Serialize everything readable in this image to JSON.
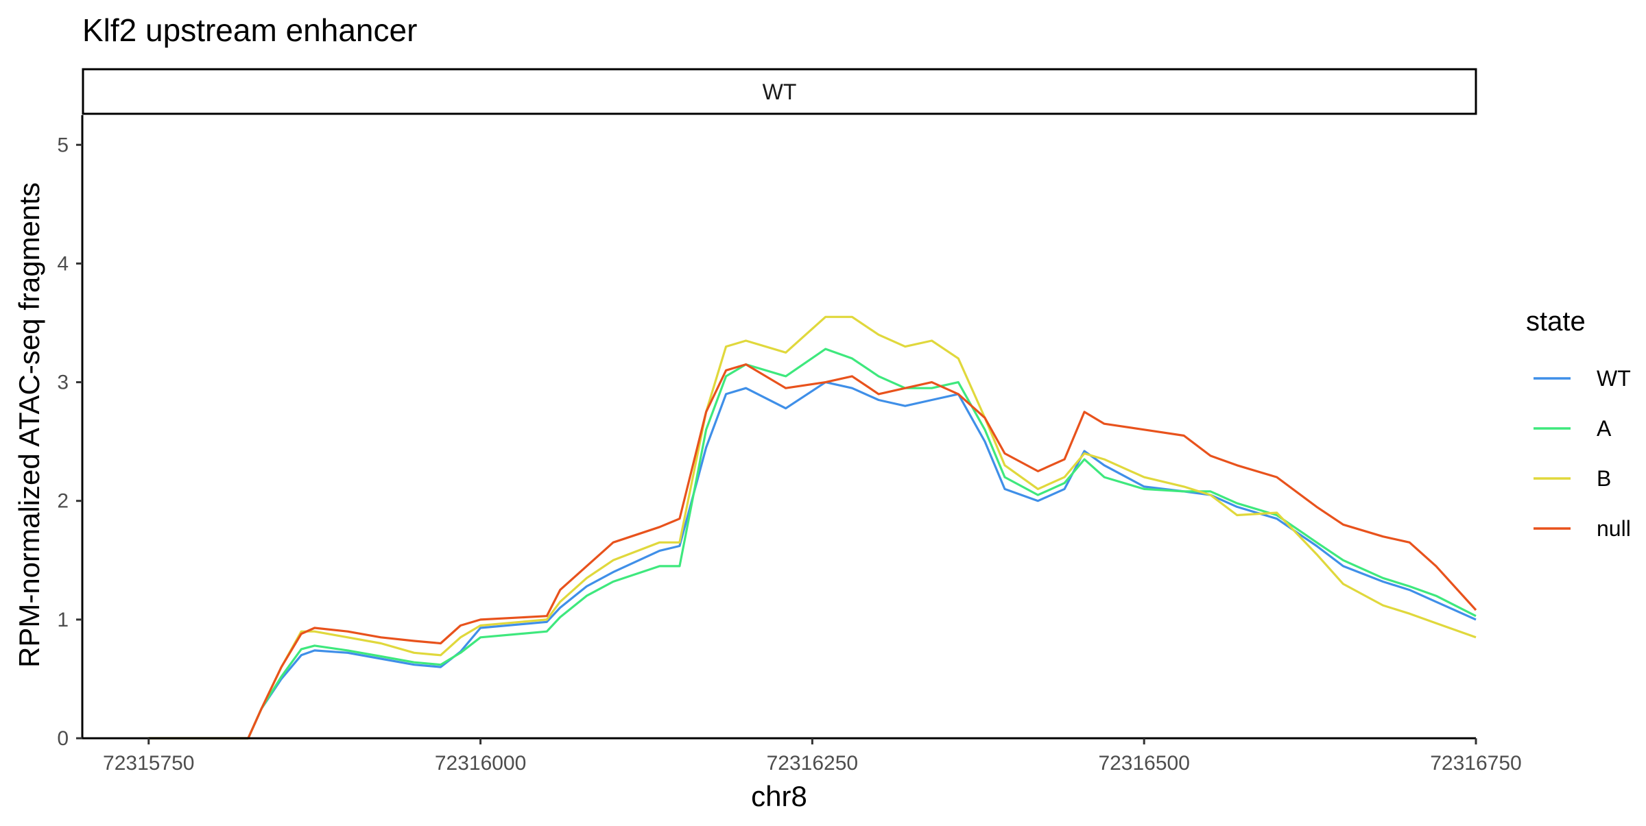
{
  "chart_data": {
    "type": "line",
    "title": "Klf2 upstream enhancer",
    "panel": "WT",
    "xlabel": "chr8",
    "ylabel": "RPM-normalized ATAC-seq fragments",
    "xlim": [
      72315700,
      72316750
    ],
    "ylim": [
      0,
      5.25
    ],
    "x_ticks": [
      72315750,
      72316000,
      72316250,
      72316500,
      72316750
    ],
    "x_tick_labels": [
      "72315750",
      "72316000",
      "72316250",
      "72316500",
      "72316750"
    ],
    "y_ticks": [
      0,
      1,
      2,
      3,
      4,
      5
    ],
    "y_tick_labels": [
      "0",
      "1",
      "2",
      "3",
      "4",
      "5"
    ],
    "grid": false,
    "legend": {
      "title": "state",
      "position": "right"
    },
    "x": [
      72315750,
      72315800,
      72315825,
      72315835,
      72315850,
      72315865,
      72315875,
      72315900,
      72315925,
      72315950,
      72315970,
      72315985,
      72316000,
      72316050,
      72316060,
      72316080,
      72316100,
      72316135,
      72316150,
      72316170,
      72316185,
      72316200,
      72316230,
      72316260,
      72316280,
      72316300,
      72316320,
      72316340,
      72316360,
      72316380,
      72316395,
      72316420,
      72316440,
      72316455,
      72316470,
      72316500,
      72316530,
      72316550,
      72316570,
      72316600,
      72316630,
      72316650,
      72316680,
      72316700,
      72316720,
      72316750
    ],
    "series": [
      {
        "name": "WT",
        "color": "#3f8fe8",
        "values": [
          0,
          0,
          0,
          0.25,
          0.5,
          0.7,
          0.74,
          0.72,
          0.67,
          0.62,
          0.6,
          0.73,
          0.93,
          0.98,
          1.1,
          1.28,
          1.4,
          1.58,
          1.62,
          2.45,
          2.9,
          2.95,
          2.78,
          3.0,
          2.95,
          2.85,
          2.8,
          2.85,
          2.9,
          2.5,
          2.1,
          2.0,
          2.1,
          2.42,
          2.3,
          2.12,
          2.08,
          2.05,
          1.95,
          1.85,
          1.62,
          1.45,
          1.32,
          1.25,
          1.15,
          1.0
        ]
      },
      {
        "name": "A",
        "color": "#3ee87d",
        "values": [
          0,
          0,
          0,
          0.25,
          0.52,
          0.75,
          0.78,
          0.74,
          0.69,
          0.64,
          0.62,
          0.72,
          0.85,
          0.9,
          1.02,
          1.2,
          1.32,
          1.45,
          1.45,
          2.6,
          3.05,
          3.15,
          3.05,
          3.28,
          3.2,
          3.05,
          2.95,
          2.95,
          3.0,
          2.6,
          2.2,
          2.05,
          2.15,
          2.35,
          2.2,
          2.1,
          2.08,
          2.08,
          1.98,
          1.88,
          1.65,
          1.5,
          1.35,
          1.28,
          1.2,
          1.03
        ]
      },
      {
        "name": "B",
        "color": "#e0d83c",
        "values": [
          0,
          0,
          0,
          0.25,
          0.6,
          0.9,
          0.9,
          0.85,
          0.8,
          0.72,
          0.7,
          0.85,
          0.95,
          1.0,
          1.15,
          1.35,
          1.5,
          1.65,
          1.65,
          2.75,
          3.3,
          3.35,
          3.25,
          3.55,
          3.55,
          3.4,
          3.3,
          3.35,
          3.2,
          2.7,
          2.3,
          2.1,
          2.2,
          2.4,
          2.35,
          2.2,
          2.12,
          2.05,
          1.88,
          1.9,
          1.55,
          1.3,
          1.12,
          1.05,
          0.97,
          0.85
        ]
      },
      {
        "name": "null",
        "color": "#e8521c",
        "values": [
          0,
          0,
          0,
          0.25,
          0.6,
          0.88,
          0.93,
          0.9,
          0.85,
          0.82,
          0.8,
          0.95,
          1.0,
          1.03,
          1.25,
          1.45,
          1.65,
          1.78,
          1.85,
          2.75,
          3.1,
          3.15,
          2.95,
          3.0,
          3.05,
          2.9,
          2.95,
          3.0,
          2.9,
          2.7,
          2.4,
          2.25,
          2.35,
          2.75,
          2.65,
          2.6,
          2.55,
          2.38,
          2.3,
          2.2,
          1.95,
          1.8,
          1.7,
          1.65,
          1.45,
          1.08
        ]
      }
    ]
  }
}
